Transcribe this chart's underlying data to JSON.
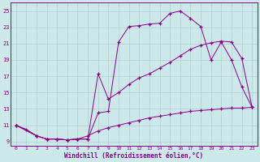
{
  "xlabel": "Windchill (Refroidissement éolien,°C)",
  "bg_color": "#cce8e8",
  "line_color": "#8B008B",
  "grid_color": "#b0d0d0",
  "xlim": [
    -0.5,
    23.5
  ],
  "ylim": [
    8.5,
    26.0
  ],
  "xticks": [
    0,
    1,
    2,
    3,
    4,
    5,
    6,
    7,
    8,
    9,
    10,
    11,
    12,
    13,
    14,
    15,
    16,
    17,
    18,
    19,
    20,
    21,
    22,
    23
  ],
  "yticks": [
    9,
    11,
    13,
    15,
    17,
    19,
    21,
    23,
    25
  ],
  "curve1_x": [
    0,
    1,
    2,
    3,
    4,
    5,
    6,
    7,
    8,
    9,
    10,
    11,
    12,
    13,
    14,
    15,
    16,
    17,
    18,
    19,
    20,
    21,
    22,
    23
  ],
  "curve1_y": [
    11,
    10.5,
    9.7,
    9.3,
    9.3,
    9.2,
    9.3,
    9.3,
    12.5,
    12.7,
    21.2,
    23.1,
    23.2,
    23.4,
    23.5,
    24.7,
    25.0,
    24.1,
    23.1,
    19.0,
    21.2,
    19.0,
    15.7,
    13.2
  ],
  "curve2_x": [
    0,
    2,
    3,
    4,
    5,
    6,
    7,
    8,
    9,
    10,
    11,
    12,
    13,
    14,
    15,
    16,
    17,
    18,
    19,
    20,
    21,
    22,
    23
  ],
  "curve2_y": [
    11,
    9.7,
    9.3,
    9.3,
    9.2,
    9.3,
    9.3,
    17.3,
    14.2,
    15.0,
    16.0,
    16.8,
    17.3,
    18.0,
    18.7,
    19.5,
    20.3,
    20.8,
    21.1,
    21.3,
    21.2,
    19.2,
    13.2
  ],
  "curve3_x": [
    0,
    2,
    3,
    4,
    5,
    6,
    7,
    8,
    9,
    10,
    11,
    12,
    13,
    14,
    15,
    16,
    17,
    18,
    19,
    20,
    21,
    22,
    23
  ],
  "curve3_y": [
    11,
    9.7,
    9.3,
    9.3,
    9.2,
    9.3,
    9.7,
    10.3,
    10.7,
    11.0,
    11.3,
    11.6,
    11.9,
    12.1,
    12.3,
    12.5,
    12.7,
    12.8,
    12.9,
    13.0,
    13.1,
    13.1,
    13.2
  ]
}
